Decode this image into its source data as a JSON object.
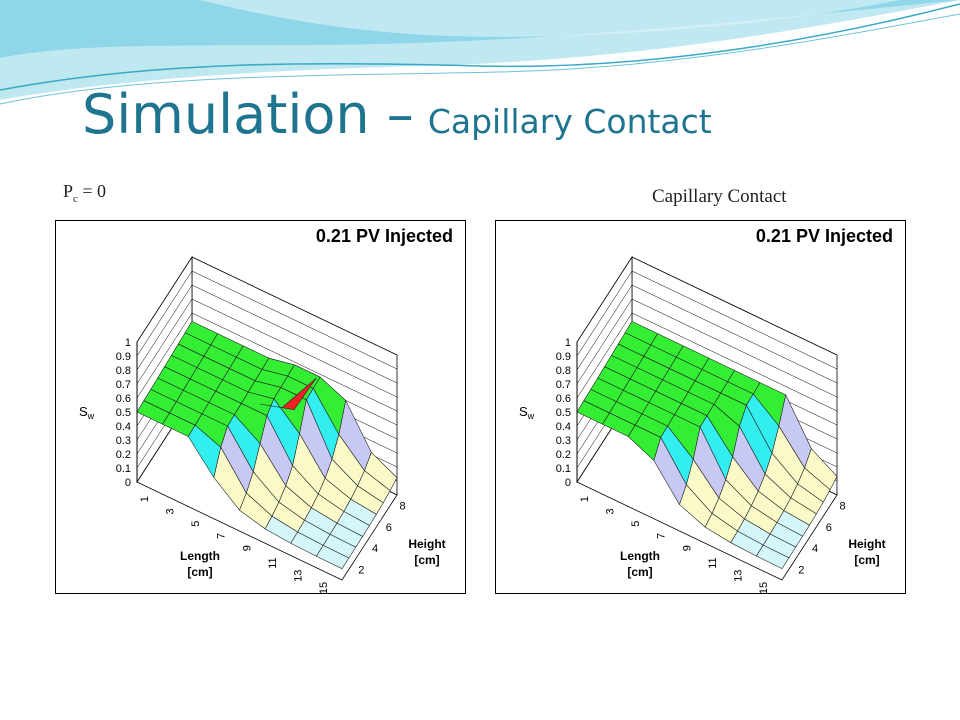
{
  "title": {
    "main": "Simulation –",
    "sub": "Capillary Contact"
  },
  "panels": [
    {
      "label": {
        "base": "P",
        "sub": "c",
        "rest": " = 0"
      },
      "plot": {
        "title": "0.21 PV Injected",
        "z_label": {
          "base": "S",
          "sub": "w"
        },
        "z_ticks": [
          "0",
          "0.1",
          "0.2",
          "0.3",
          "0.4",
          "0.5",
          "0.6",
          "0.7",
          "0.8",
          "0.9",
          "1"
        ],
        "x_label": [
          "Length",
          "[cm]"
        ],
        "x_ticks": [
          "1",
          "3",
          "5",
          "7",
          "9",
          "11",
          "13",
          "15"
        ],
        "y_label": [
          "Height",
          "[cm]"
        ],
        "y_ticks": [
          "2",
          "4",
          "6",
          "8"
        ]
      }
    },
    {
      "label": {
        "base": "Capillary Contact"
      },
      "plot": {
        "title": "0.21 PV Injected",
        "z_label": {
          "base": "S",
          "sub": "w"
        },
        "z_ticks": [
          "0",
          "0.1",
          "0.2",
          "0.3",
          "0.4",
          "0.5",
          "0.6",
          "0.7",
          "0.8",
          "0.9",
          "1"
        ],
        "x_label": [
          "Length",
          "[cm]"
        ],
        "x_ticks": [
          "1",
          "3",
          "5",
          "7",
          "9",
          "11",
          "13",
          "15"
        ],
        "y_label": [
          "Height",
          "[cm]"
        ],
        "y_ticks": [
          "2",
          "4",
          "6",
          "8"
        ]
      }
    }
  ]
}
